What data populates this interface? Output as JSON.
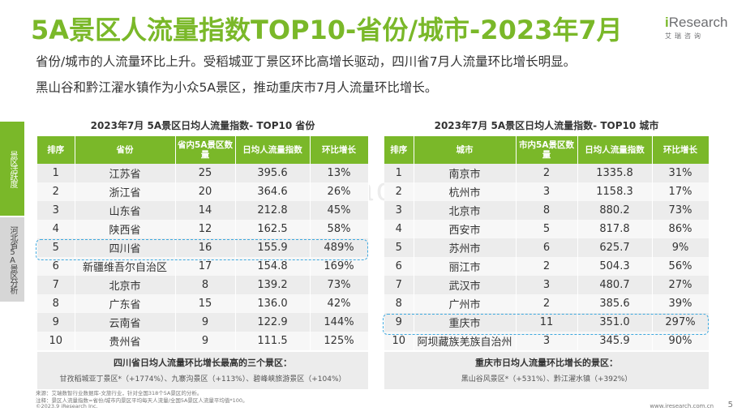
{
  "title": "5A景区人流量指数TOP10-省份/城市-2023年7月",
  "logo": {
    "brand_i": "i",
    "brand_rest": "Research",
    "sub": "艾瑞咨询"
  },
  "subtitles": [
    "省份/城市的人流量环比上升。受稻城亚丁景区环比高增长驱动，四川省7月人流量环比增长明显。",
    "黑山谷和黔江濯水镇作为小众5A景区，推动重庆市7月人流量环比增长。"
  ],
  "sidenav": {
    "active": "景区活跃度",
    "inactive": "河北省5A景区分析"
  },
  "left_table": {
    "caption": "2023年7月 5A景区日均人流量指数- TOP10 省份",
    "headers": [
      "排序",
      "省份",
      "省内5A景区数量",
      "日均人流量指数",
      "环比增长"
    ],
    "rows": [
      [
        "1",
        "江苏省",
        "25",
        "395.6",
        "13%"
      ],
      [
        "2",
        "浙江省",
        "20",
        "364.6",
        "26%"
      ],
      [
        "3",
        "山东省",
        "14",
        "212.8",
        "45%"
      ],
      [
        "4",
        "陕西省",
        "12",
        "162.5",
        "58%"
      ],
      [
        "5",
        "四川省",
        "16",
        "155.9",
        "489%"
      ],
      [
        "6",
        "新疆维吾尔自治区",
        "17",
        "154.8",
        "169%"
      ],
      [
        "7",
        "北京市",
        "8",
        "139.2",
        "73%"
      ],
      [
        "8",
        "广东省",
        "15",
        "136.0",
        "42%"
      ],
      [
        "9",
        "云南省",
        "9",
        "122.9",
        "144%"
      ],
      [
        "10",
        "贵州省",
        "9",
        "111.5",
        "125%"
      ]
    ],
    "note_title": "四川省日均人流量环比增长最高的三个景区：",
    "note_text": "甘孜稻城亚丁景区*（+1774%）、九寨沟景区（+113%）、碧峰峡旅游景区（+104%）"
  },
  "right_table": {
    "caption": "2023年7月 5A景区日均人流量指数- TOP10 城市",
    "headers": [
      "排序",
      "城市",
      "市内5A景区数量",
      "日均人流量指数",
      "环比增长"
    ],
    "rows": [
      [
        "1",
        "南京市",
        "2",
        "1335.8",
        "31%"
      ],
      [
        "2",
        "杭州市",
        "3",
        "1158.3",
        "17%"
      ],
      [
        "3",
        "北京市",
        "8",
        "880.2",
        "73%"
      ],
      [
        "4",
        "西安市",
        "5",
        "817.8",
        "86%"
      ],
      [
        "5",
        "苏州市",
        "6",
        "625.7",
        "9%"
      ],
      [
        "6",
        "丽江市",
        "2",
        "504.3",
        "56%"
      ],
      [
        "7",
        "武汉市",
        "3",
        "480.7",
        "27%"
      ],
      [
        "8",
        "广州市",
        "2",
        "385.6",
        "39%"
      ],
      [
        "9",
        "重庆市",
        "11",
        "351.0",
        "297%"
      ],
      [
        "10",
        "阿坝藏族羌族自治州",
        "3",
        "345.9",
        "90%"
      ]
    ],
    "note_title": "重庆市日均人流量环比增长的景区：",
    "note_text": "黑山谷风景区*（+531%）、黔江濯水镇（+392%）"
  },
  "watermark": "www.baogao.com.cn",
  "footnotes": [
    "来源：艾瑞数智行业数据库-文旅行业，针对全国318个5A景区的分析。",
    "注释：景区人流量指数=省份/城市内景区平均每天人流量/全国5A景区人流量平均值*100。",
    "©2023.9 iResearch Inc."
  ],
  "footer_url": "www.iresearch.com.cn",
  "page_number": "5",
  "colors": {
    "accent": "#7ab829",
    "highlight": "#3fa9df"
  }
}
